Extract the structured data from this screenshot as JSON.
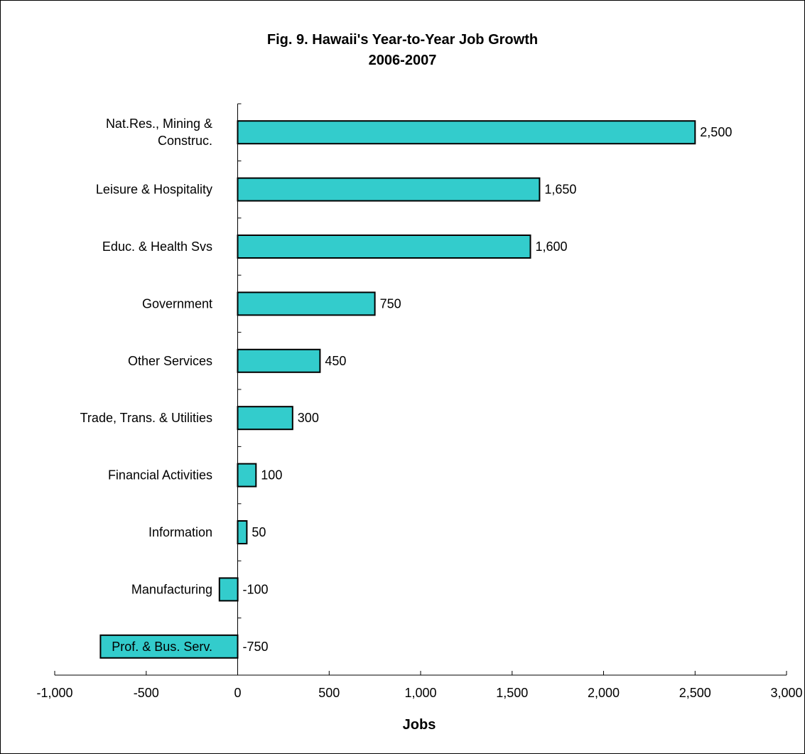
{
  "chart_data": {
    "type": "bar",
    "orientation": "horizontal",
    "title": "Fig. 9. Hawaii's Year-to-Year Job Growth",
    "subtitle": "2006-2007",
    "xlabel": "Jobs",
    "ylabel": "",
    "xlim": [
      -1000,
      3000
    ],
    "xticks": [
      -1000,
      -500,
      0,
      500,
      1000,
      1500,
      2000,
      2500,
      3000
    ],
    "xtick_labels": [
      "-1,000",
      "-500",
      "0",
      "500",
      "1,000",
      "1,500",
      "2,000",
      "2,500",
      "3,000"
    ],
    "categories": [
      "Nat.Res., Mining & Construc.",
      "Leisure & Hospitality",
      "Educ. & Health Svs",
      "Government",
      "Other Services",
      "Trade, Trans. & Utilities",
      "Financial Activities",
      "Information",
      "Manufacturing",
      "Prof. & Bus. Serv."
    ],
    "category_lines": [
      [
        "Nat.Res., Mining &",
        "Construc."
      ],
      [
        "Leisure & Hospitality"
      ],
      [
        "Educ. & Health Svs"
      ],
      [
        "Government"
      ],
      [
        "Other Services"
      ],
      [
        "Trade, Trans. & Utilities"
      ],
      [
        "Financial Activities"
      ],
      [
        "Information"
      ],
      [
        "Manufacturing"
      ],
      [
        "Prof. & Bus. Serv."
      ]
    ],
    "values": [
      2500,
      1650,
      1600,
      750,
      450,
      300,
      100,
      50,
      -100,
      -750
    ],
    "data_labels": [
      "2,500",
      "1,650",
      "1,600",
      "750",
      "450",
      "300",
      "100",
      "50",
      "-100",
      "-750"
    ],
    "bar_color": "#33CCCC",
    "grid": false,
    "legend": "none"
  }
}
